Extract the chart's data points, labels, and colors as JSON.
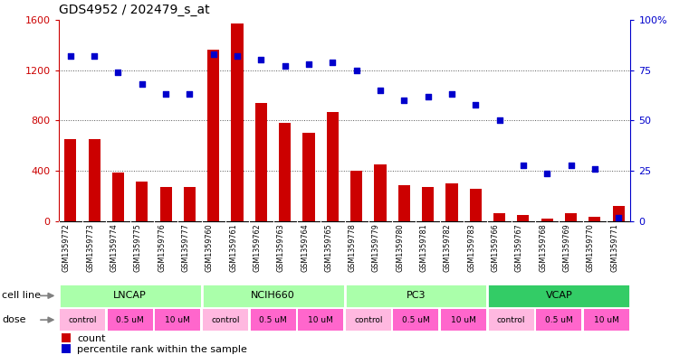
{
  "title": "GDS4952 / 202479_s_at",
  "samples": [
    "GSM1359772",
    "GSM1359773",
    "GSM1359774",
    "GSM1359775",
    "GSM1359776",
    "GSM1359777",
    "GSM1359760",
    "GSM1359761",
    "GSM1359762",
    "GSM1359763",
    "GSM1359764",
    "GSM1359765",
    "GSM1359778",
    "GSM1359779",
    "GSM1359780",
    "GSM1359781",
    "GSM1359782",
    "GSM1359783",
    "GSM1359766",
    "GSM1359767",
    "GSM1359768",
    "GSM1359769",
    "GSM1359770",
    "GSM1359771"
  ],
  "counts": [
    650,
    650,
    390,
    320,
    270,
    270,
    1360,
    1570,
    940,
    780,
    700,
    870,
    400,
    450,
    290,
    270,
    300,
    260,
    65,
    55,
    25,
    65,
    35,
    120
  ],
  "percentiles": [
    82,
    82,
    74,
    68,
    63,
    63,
    83,
    82,
    80,
    77,
    78,
    79,
    75,
    65,
    60,
    62,
    63,
    58,
    50,
    28,
    24,
    28,
    26,
    2
  ],
  "bar_color": "#CC0000",
  "scatter_color": "#0000CC",
  "left_ylim": [
    0,
    1600
  ],
  "left_yticks": [
    0,
    400,
    800,
    1200,
    1600
  ],
  "right_ylim": [
    0,
    100
  ],
  "right_yticks": [
    0,
    25,
    50,
    75,
    100
  ],
  "grid_yticks": [
    400,
    800,
    1200
  ],
  "grid_color": "#555555",
  "xtick_bg_color": "#D0D0D0",
  "cell_groups": [
    {
      "name": "LNCAP",
      "start": 0,
      "end": 6,
      "color": "#AAFFAA"
    },
    {
      "name": "NCIH660",
      "start": 6,
      "end": 12,
      "color": "#AAFFAA"
    },
    {
      "name": "PC3",
      "start": 12,
      "end": 18,
      "color": "#AAFFAA"
    },
    {
      "name": "VCAP",
      "start": 18,
      "end": 24,
      "color": "#33CC66"
    }
  ],
  "dose_groups": [
    {
      "name": "control",
      "start": 0,
      "end": 2,
      "color": "#FFB8E0"
    },
    {
      "name": "0.5 uM",
      "start": 2,
      "end": 4,
      "color": "#FF66CC"
    },
    {
      "name": "10 uM",
      "start": 4,
      "end": 6,
      "color": "#FF66CC"
    },
    {
      "name": "control",
      "start": 6,
      "end": 8,
      "color": "#FFB8E0"
    },
    {
      "name": "0.5 uM",
      "start": 8,
      "end": 10,
      "color": "#FF66CC"
    },
    {
      "name": "10 uM",
      "start": 10,
      "end": 12,
      "color": "#FF66CC"
    },
    {
      "name": "control",
      "start": 12,
      "end": 14,
      "color": "#FFB8E0"
    },
    {
      "name": "0.5 uM",
      "start": 14,
      "end": 16,
      "color": "#FF66CC"
    },
    {
      "name": "10 uM",
      "start": 16,
      "end": 18,
      "color": "#FF66CC"
    },
    {
      "name": "control",
      "start": 18,
      "end": 20,
      "color": "#FFB8E0"
    },
    {
      "name": "0.5 uM",
      "start": 20,
      "end": 22,
      "color": "#FF66CC"
    },
    {
      "name": "10 uM",
      "start": 22,
      "end": 24,
      "color": "#FF66CC"
    }
  ],
  "left_label_color": "#CC0000",
  "right_label_color": "#0000CC"
}
